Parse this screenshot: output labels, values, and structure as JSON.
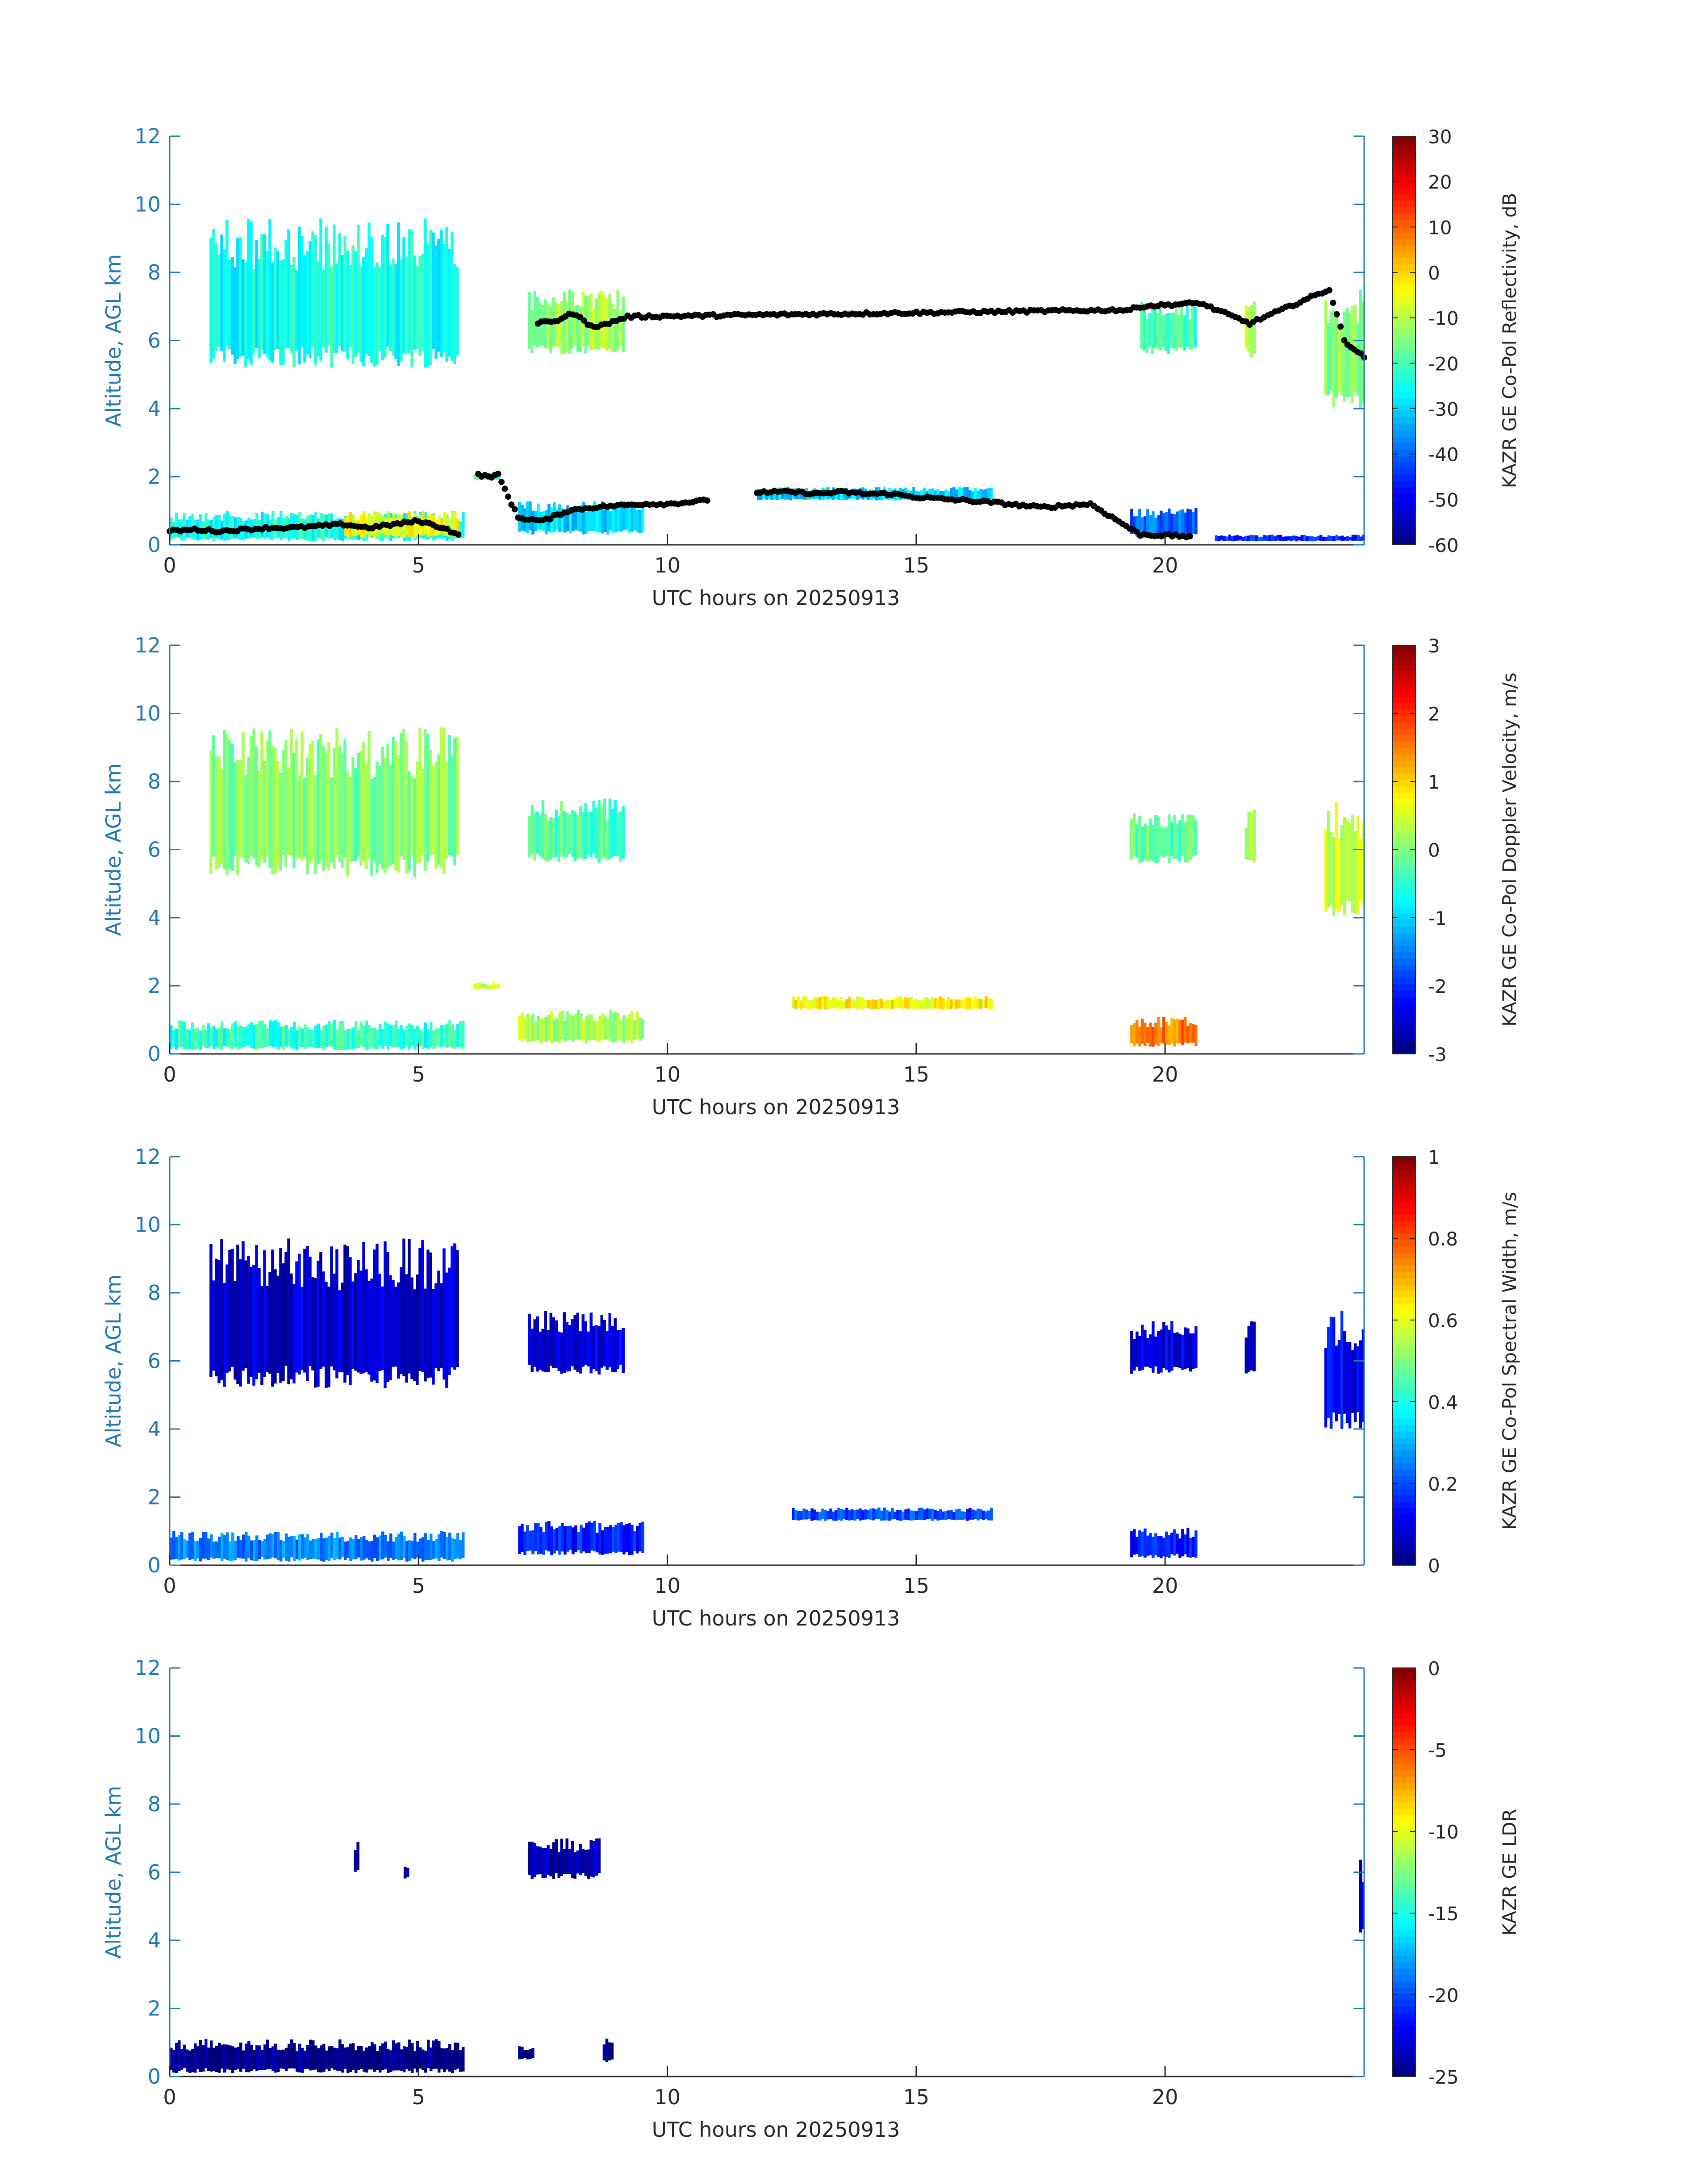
{
  "chart_data": [
    {
      "type": "heatmap",
      "xlabel": "UTC hours on 20250913",
      "ylabel": "Altitude, AGL km",
      "xlim": [
        0,
        24
      ],
      "ylim": [
        0,
        12
      ],
      "xticks": [
        0,
        5,
        10,
        15,
        20
      ],
      "yticks": [
        0,
        2,
        4,
        6,
        8,
        10,
        12
      ],
      "colorbar": {
        "label": "KAZR GE Co-Pol Reflectivity, dB",
        "min": -60,
        "max": 30,
        "ticks": [
          30,
          20,
          10,
          0,
          -10,
          -20,
          -30,
          -40,
          -50,
          -60
        ]
      },
      "overlay_points": "cloud base (black dots)",
      "regions": [
        {
          "x": [
            0,
            5.9
          ],
          "y": [
            0.1,
            1.0
          ],
          "value": -25
        },
        {
          "x": [
            3.5,
            5.8
          ],
          "y": [
            0.2,
            1.0
          ],
          "value": -5
        },
        {
          "x": [
            0.8,
            5.8
          ],
          "y": [
            5.2,
            9.6
          ],
          "value": -25
        },
        {
          "x": [
            7.2,
            9.1
          ],
          "y": [
            5.6,
            7.5
          ],
          "value": -12
        },
        {
          "x": [
            6.1,
            6.6
          ],
          "y": [
            1.9,
            2.1
          ],
          "value": -20
        },
        {
          "x": [
            7.0,
            9.5
          ],
          "y": [
            0.3,
            1.3
          ],
          "value": -30
        },
        {
          "x": [
            11.8,
            16.5
          ],
          "y": [
            1.3,
            1.7
          ],
          "value": -30
        },
        {
          "x": [
            19.3,
            20.6
          ],
          "y": [
            0.2,
            1.1
          ],
          "value": -40
        },
        {
          "x": [
            19.5,
            20.6
          ],
          "y": [
            5.6,
            7.2
          ],
          "value": -20
        },
        {
          "x": [
            21.6,
            21.8
          ],
          "y": [
            5.5,
            7.2
          ],
          "value": -10
        },
        {
          "x": [
            23.2,
            24.0
          ],
          "y": [
            4.0,
            7.5
          ],
          "value": -15
        },
        {
          "x": [
            21.0,
            24.0
          ],
          "y": [
            0.1,
            0.3
          ],
          "value": -45
        }
      ],
      "cloud_base_points": [
        {
          "x": [
            0,
            0.5,
            1,
            1.5,
            2,
            2.5,
            3,
            3.5,
            4,
            4.5,
            5,
            5.5,
            5.8
          ],
          "y": [
            0.4,
            0.45,
            0.4,
            0.45,
            0.5,
            0.5,
            0.55,
            0.6,
            0.5,
            0.6,
            0.7,
            0.5,
            0.3
          ]
        },
        {
          "x": [
            6.2,
            6.4,
            6.6,
            7.0,
            7.5,
            8.0,
            8.5,
            9.0,
            9.5,
            10.0,
            10.8
          ],
          "y": [
            2.05,
            2.0,
            2.05,
            0.8,
            0.7,
            1.0,
            1.1,
            1.15,
            1.2,
            1.2,
            1.3
          ]
        },
        {
          "x": [
            11.8,
            12.5,
            13,
            13.5,
            14,
            14.5,
            15,
            15.5,
            16,
            16.5,
            17.5,
            18.5,
            19.5,
            20.5
          ],
          "y": [
            1.55,
            1.55,
            1.5,
            1.55,
            1.5,
            1.5,
            1.4,
            1.35,
            1.3,
            1.25,
            1.1,
            1.2,
            0.3,
            0.25
          ]
        },
        {
          "x": [
            7.4,
            7.8,
            8.1,
            8.4,
            8.6,
            9.2,
            19.3,
            19.5,
            20.7,
            21.7,
            23.3,
            23.6,
            24.0
          ],
          "y": [
            6.5,
            6.6,
            6.8,
            6.5,
            6.4,
            6.7,
            6.9,
            7.0,
            7.1,
            6.5,
            7.5,
            6.0,
            5.5
          ]
        }
      ]
    },
    {
      "type": "heatmap",
      "xlabel": "UTC hours on 20250913",
      "ylabel": "Altitude, AGL km",
      "xlim": [
        0,
        24
      ],
      "ylim": [
        0,
        12
      ],
      "xticks": [
        0,
        5,
        10,
        15,
        20
      ],
      "yticks": [
        0,
        2,
        4,
        6,
        8,
        10,
        12
      ],
      "colorbar": {
        "label": "KAZR GE Co-Pol Doppler Velocity, m/s",
        "min": -3,
        "max": 3,
        "ticks": [
          3,
          2,
          1,
          0,
          -1,
          -2,
          -3
        ]
      },
      "regions": [
        {
          "x": [
            0,
            5.9
          ],
          "y": [
            0.1,
            1.0
          ],
          "value": -0.5
        },
        {
          "x": [
            0.8,
            5.8
          ],
          "y": [
            5.2,
            9.6
          ],
          "value": 0.0
        },
        {
          "x": [
            7.2,
            9.1
          ],
          "y": [
            5.6,
            7.5
          ],
          "value": -0.3
        },
        {
          "x": [
            6.1,
            6.6
          ],
          "y": [
            1.9,
            2.1
          ],
          "value": 0.5
        },
        {
          "x": [
            7.0,
            9.5
          ],
          "y": [
            0.3,
            1.3
          ],
          "value": 0.2
        },
        {
          "x": [
            12.5,
            16.5
          ],
          "y": [
            1.3,
            1.7
          ],
          "value": 0.8
        },
        {
          "x": [
            19.3,
            20.6
          ],
          "y": [
            5.6,
            7.2
          ],
          "value": -0.2
        },
        {
          "x": [
            21.6,
            21.8
          ],
          "y": [
            5.5,
            7.2
          ],
          "value": 0.3
        },
        {
          "x": [
            23.2,
            24.0
          ],
          "y": [
            4.0,
            7.5
          ],
          "value": 0.5
        },
        {
          "x": [
            19.3,
            20.6
          ],
          "y": [
            0.2,
            1.1
          ],
          "value": 1.5
        }
      ]
    },
    {
      "type": "heatmap",
      "xlabel": "UTC hours on 20250913",
      "ylabel": "Altitude, AGL km",
      "xlim": [
        0,
        24
      ],
      "ylim": [
        0,
        12
      ],
      "xticks": [
        0,
        5,
        10,
        15,
        20
      ],
      "yticks": [
        0,
        2,
        4,
        6,
        8,
        10,
        12
      ],
      "colorbar": {
        "label": "KAZR GE Co-Pol Spectral Width, m/s",
        "min": 0,
        "max": 1,
        "ticks": [
          1,
          0.8,
          0.6,
          0.4,
          0.2,
          0
        ]
      },
      "regions": [
        {
          "x": [
            0,
            5.9
          ],
          "y": [
            0.1,
            1.0
          ],
          "value": 0.25
        },
        {
          "x": [
            0.8,
            5.8
          ],
          "y": [
            5.2,
            9.6
          ],
          "value": 0.08
        },
        {
          "x": [
            7.2,
            9.1
          ],
          "y": [
            5.6,
            7.5
          ],
          "value": 0.1
        },
        {
          "x": [
            7.0,
            9.5
          ],
          "y": [
            0.3,
            1.3
          ],
          "value": 0.15
        },
        {
          "x": [
            12.5,
            16.5
          ],
          "y": [
            1.3,
            1.7
          ],
          "value": 0.2
        },
        {
          "x": [
            19.3,
            20.6
          ],
          "y": [
            5.6,
            7.2
          ],
          "value": 0.1
        },
        {
          "x": [
            21.6,
            21.8
          ],
          "y": [
            5.5,
            7.2
          ],
          "value": 0.1
        },
        {
          "x": [
            23.2,
            24.0
          ],
          "y": [
            4.0,
            7.5
          ],
          "value": 0.12
        },
        {
          "x": [
            19.3,
            20.6
          ],
          "y": [
            0.2,
            1.1
          ],
          "value": 0.15
        }
      ]
    },
    {
      "type": "heatmap",
      "xlabel": "UTC hours on 20250913",
      "ylabel": "Altitude, AGL km",
      "xlim": [
        0,
        24
      ],
      "ylim": [
        0,
        12
      ],
      "xticks": [
        0,
        5,
        10,
        15,
        20
      ],
      "yticks": [
        0,
        2,
        4,
        6,
        8,
        10,
        12
      ],
      "colorbar": {
        "label": "KAZR GE LDR",
        "min": -25,
        "max": 0,
        "ticks": [
          0,
          -5,
          -10,
          -15,
          -20,
          -25
        ]
      },
      "regions": [
        {
          "x": [
            0,
            5.9
          ],
          "y": [
            0.1,
            1.1
          ],
          "value": -25
        },
        {
          "x": [
            3.7,
            3.8
          ],
          "y": [
            6.0,
            6.9
          ],
          "value": -24
        },
        {
          "x": [
            4.7,
            4.8
          ],
          "y": [
            5.8,
            6.2
          ],
          "value": -24
        },
        {
          "x": [
            7.2,
            8.6
          ],
          "y": [
            5.8,
            7.0
          ],
          "value": -24
        },
        {
          "x": [
            7.0,
            7.3
          ],
          "y": [
            0.5,
            0.9
          ],
          "value": -25
        },
        {
          "x": [
            8.7,
            8.9
          ],
          "y": [
            0.4,
            1.2
          ],
          "value": -25
        },
        {
          "x": [
            23.9,
            24.0
          ],
          "y": [
            4.0,
            6.5
          ],
          "value": -23
        }
      ]
    }
  ]
}
